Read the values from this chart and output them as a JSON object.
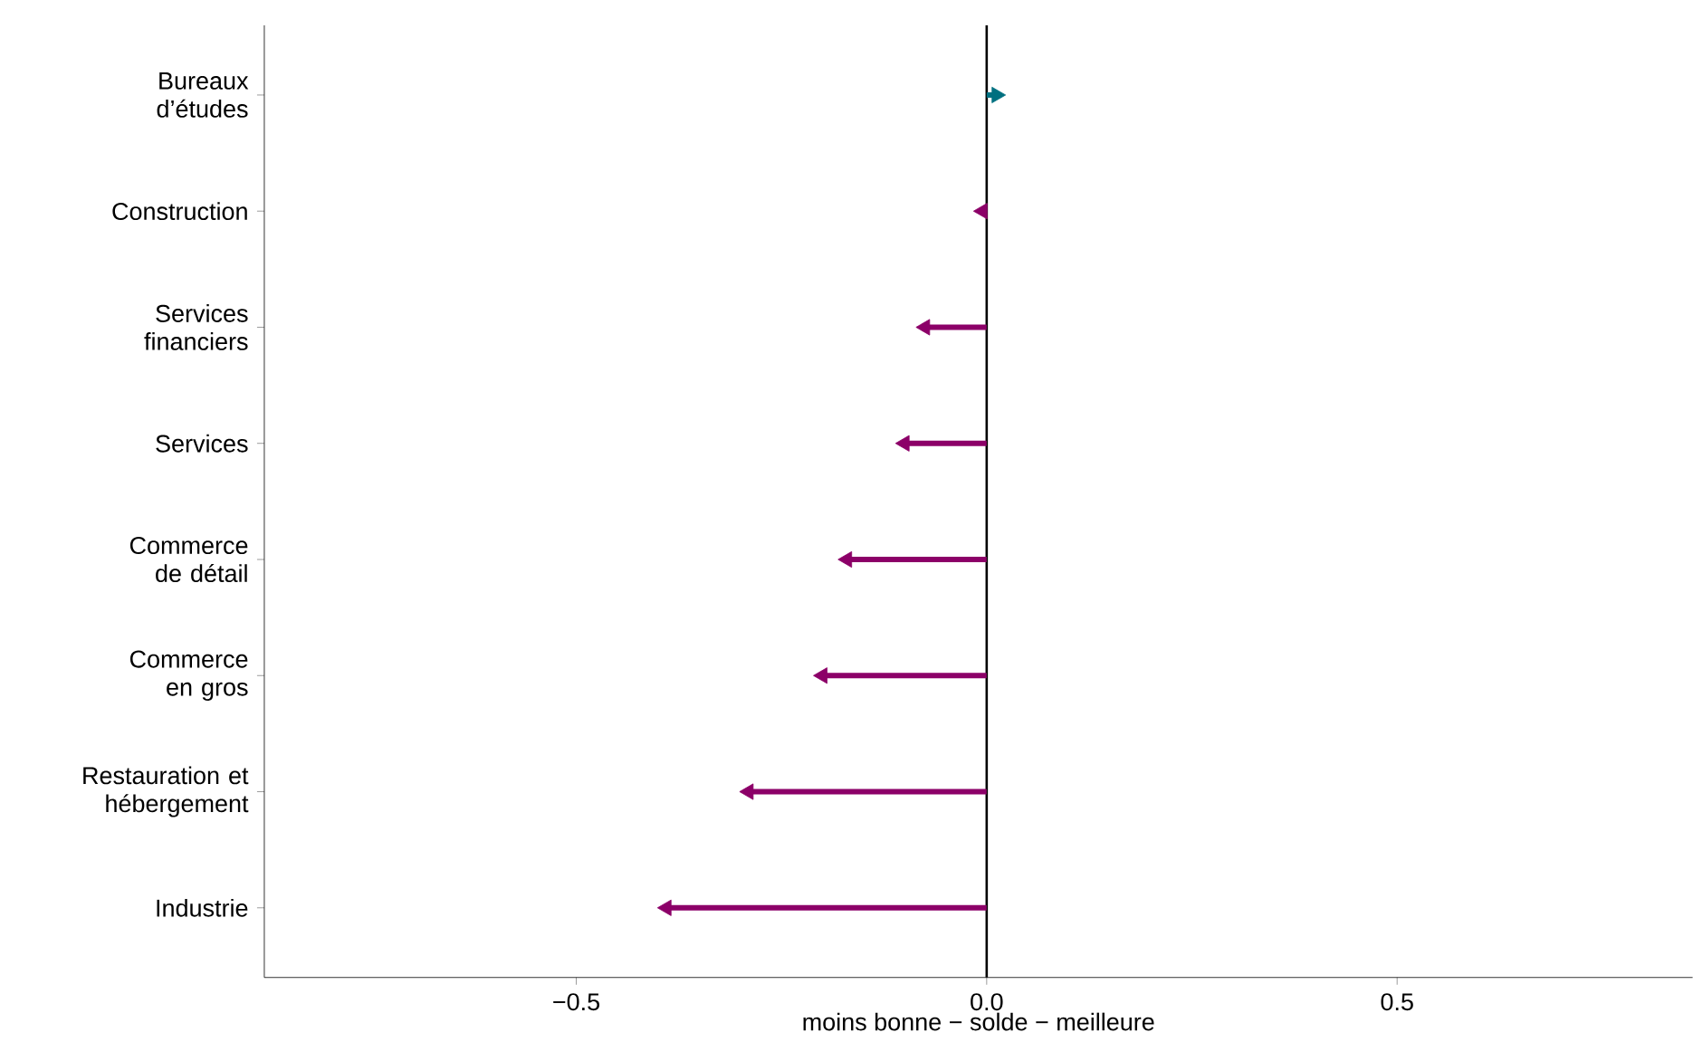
{
  "chart_data": {
    "type": "lollipop",
    "orientation": "horizontal",
    "marker": "triangle",
    "categories": [
      "Bureaux d’études",
      "Construction",
      "Services financiers",
      "Services",
      "Commerce de détail",
      "Commerce en gros",
      "Restauration et hébergement",
      "Industrie"
    ],
    "values": [
      0.012,
      -0.005,
      -0.075,
      -0.1,
      -0.17,
      -0.2,
      -0.29,
      -0.39
    ],
    "colors": [
      "#007080",
      "#8c0068",
      "#8c0068",
      "#8c0068",
      "#8c0068",
      "#8c0068",
      "#8c0068",
      "#8c0068"
    ],
    "xlim": [
      -0.88,
      0.86
    ],
    "xticks": [
      {
        "value": -0.5,
        "label": "−0.5"
      },
      {
        "value": 0,
        "label": "0.0"
      },
      {
        "value": 0.5,
        "label": "0.5"
      }
    ],
    "xlabel": "moins bonne  −  solde  −  meilleure",
    "ref_lines": [
      {
        "axis": "x",
        "value": 0,
        "color": "#000000"
      }
    ],
    "grid": false
  }
}
